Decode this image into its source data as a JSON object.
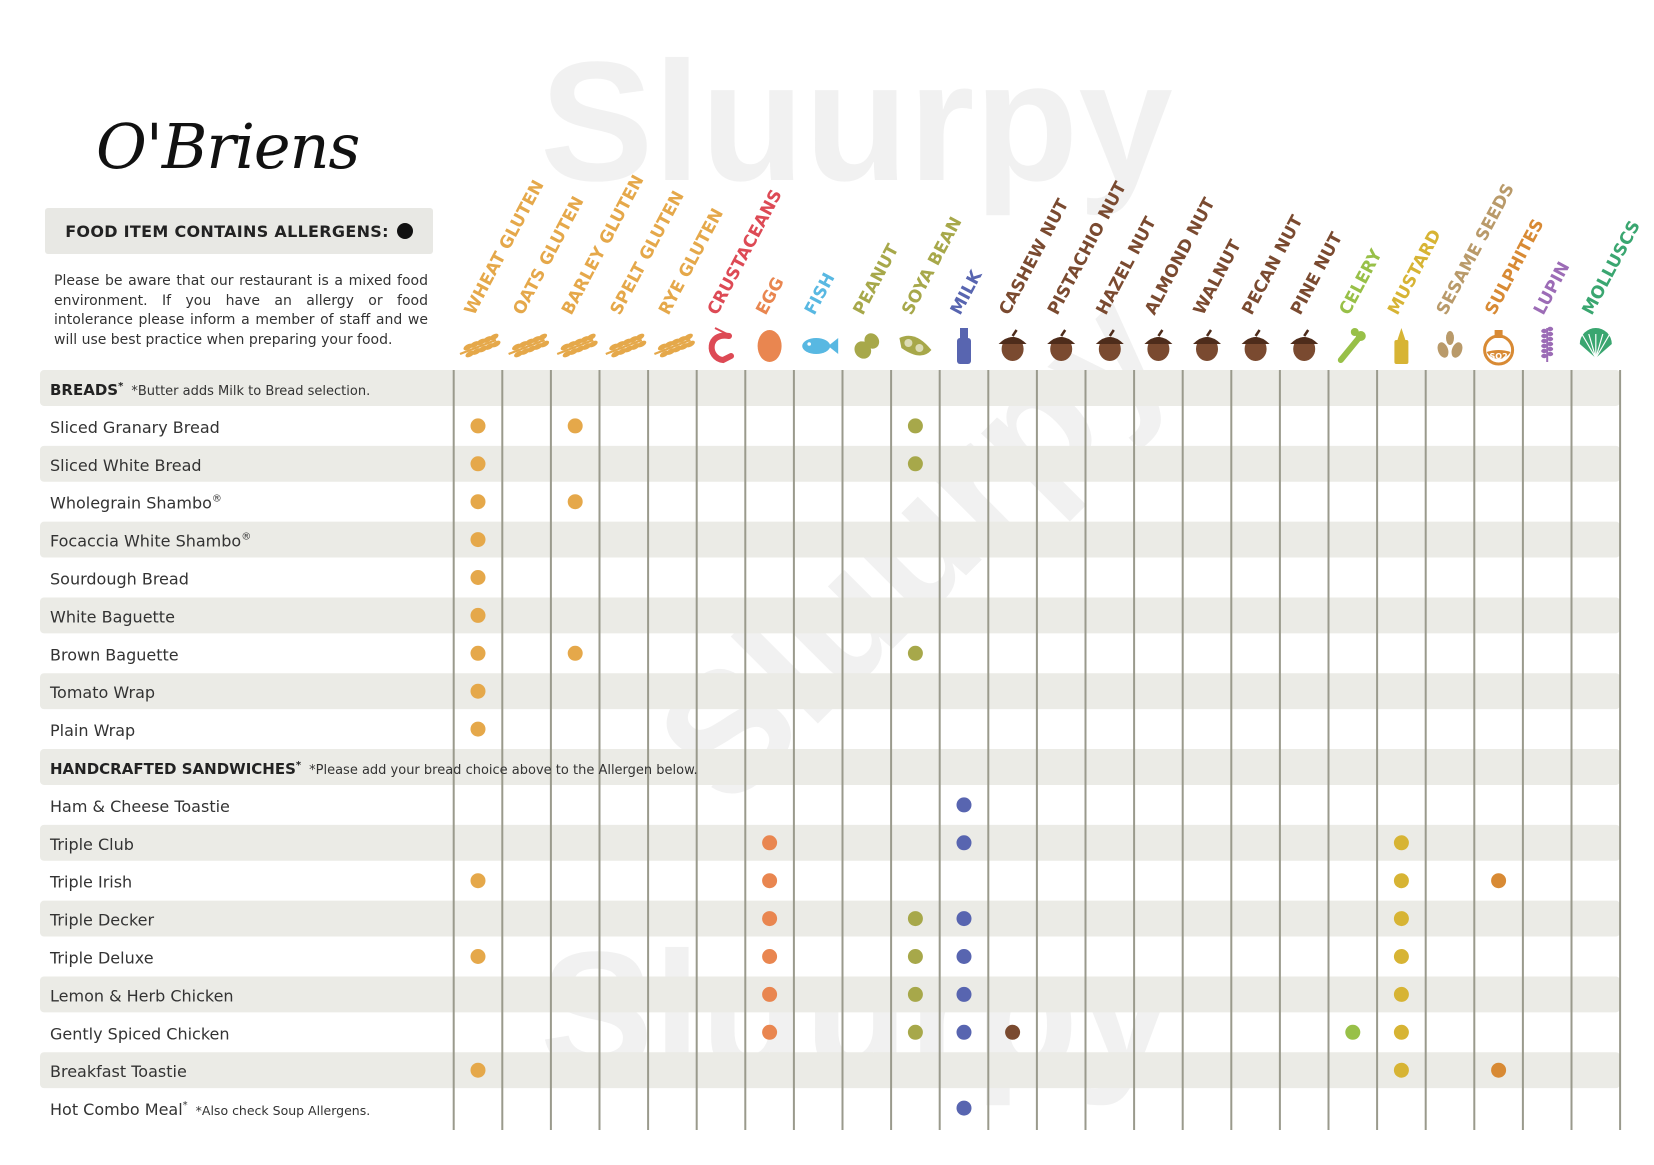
{
  "brand": {
    "logo_text": "O'Briens"
  },
  "legend": {
    "label": "FOOD ITEM CONTAINS ALLERGENS:"
  },
  "notice": "Please be aware that our restaurant is a mixed food environment. If you have an allergy or food intolerance please inform a member of staff and we will use best practice when preparing your food.",
  "watermark": "Sluurpy",
  "colors": {
    "row_shade": "#ebebe6",
    "grid_line": "#9a9a8c",
    "gluten": "#e5a84a",
    "crustaceans": "#dd4a55",
    "egg": "#e98650",
    "fish": "#58b8e2",
    "soy_peanut": "#a7a84a",
    "milk": "#5865b0",
    "nut": "#7a4a30",
    "celery": "#98c048",
    "mustard": "#d7b434",
    "sesame": "#b99a6a",
    "sulphites": "#d88a34",
    "lupin": "#9c6cb6",
    "molluscs": "#3aa670"
  },
  "allergens": [
    {
      "label": "WHEAT GLUTEN",
      "icon": "wheat-icon",
      "color": "#e5a84a"
    },
    {
      "label": "OATS GLUTEN",
      "icon": "wheat-icon",
      "color": "#e5a84a"
    },
    {
      "label": "BARLEY GLUTEN",
      "icon": "wheat-icon",
      "color": "#e5a84a"
    },
    {
      "label": "SPELT GLUTEN",
      "icon": "wheat-icon",
      "color": "#e5a84a"
    },
    {
      "label": "RYE GLUTEN",
      "icon": "wheat-icon",
      "color": "#e5a84a"
    },
    {
      "label": "CRUSTACEANS",
      "icon": "shrimp-icon",
      "color": "#dd4a55"
    },
    {
      "label": "EGG",
      "icon": "egg-icon",
      "color": "#e98650"
    },
    {
      "label": "FISH",
      "icon": "fish-icon",
      "color": "#58b8e2"
    },
    {
      "label": "PEANUT",
      "icon": "peanut-icon",
      "color": "#a7a84a"
    },
    {
      "label": "SOYA BEAN",
      "icon": "soybean-icon",
      "color": "#a7a84a"
    },
    {
      "label": "MILK",
      "icon": "milk-bottle-icon",
      "color": "#5865b0"
    },
    {
      "label": "CASHEW NUT",
      "icon": "acorn-icon",
      "color": "#7a4a30"
    },
    {
      "label": "PISTACHIO NUT",
      "icon": "acorn-icon",
      "color": "#7a4a30"
    },
    {
      "label": "HAZEL NUT",
      "icon": "acorn-icon",
      "color": "#7a4a30"
    },
    {
      "label": "ALMOND NUT",
      "icon": "acorn-icon",
      "color": "#7a4a30"
    },
    {
      "label": "WALNUT",
      "icon": "acorn-icon",
      "color": "#7a4a30"
    },
    {
      "label": "PECAN NUT",
      "icon": "acorn-icon",
      "color": "#7a4a30"
    },
    {
      "label": "PINE NUT",
      "icon": "acorn-icon",
      "color": "#7a4a30"
    },
    {
      "label": "CELERY",
      "icon": "celery-icon",
      "color": "#98c048"
    },
    {
      "label": "MUSTARD",
      "icon": "mustard-bottle-icon",
      "color": "#d7b434"
    },
    {
      "label": "SESAME SEEDS",
      "icon": "seeds-icon",
      "color": "#b99a6a"
    },
    {
      "label": "SULPHITES",
      "icon": "flask-icon",
      "color": "#d88a34",
      "icon_text": "SO2"
    },
    {
      "label": "LUPIN",
      "icon": "lupin-flower-icon",
      "color": "#9c6cb6"
    },
    {
      "label": "MOLLUSCS",
      "icon": "shell-icon",
      "color": "#3aa670"
    }
  ],
  "rows": [
    {
      "type": "section",
      "label": "BREADS",
      "sup": "*",
      "note": "*Butter adds Milk to Bread selection."
    },
    {
      "type": "item",
      "label": "Sliced Granary Bread",
      "marks": [
        0,
        2,
        9
      ]
    },
    {
      "type": "item",
      "label": "Sliced White Bread",
      "marks": [
        0,
        9
      ]
    },
    {
      "type": "item",
      "label": "Wholegrain Shambo",
      "sup": "®",
      "marks": [
        0,
        2
      ]
    },
    {
      "type": "item",
      "label": "Focaccia White Shambo",
      "sup": "®",
      "marks": [
        0
      ]
    },
    {
      "type": "item",
      "label": "Sourdough Bread",
      "marks": [
        0
      ]
    },
    {
      "type": "item",
      "label": "White Baguette",
      "marks": [
        0
      ]
    },
    {
      "type": "item",
      "label": "Brown Baguette",
      "marks": [
        0,
        2,
        9
      ]
    },
    {
      "type": "item",
      "label": "Tomato Wrap",
      "marks": [
        0
      ]
    },
    {
      "type": "item",
      "label": "Plain Wrap",
      "marks": [
        0
      ]
    },
    {
      "type": "section",
      "label": "HANDCRAFTED SANDWICHES",
      "sup": "*",
      "note": "*Please add your bread choice above to the Allergen below."
    },
    {
      "type": "item",
      "label": "Ham & Cheese Toastie",
      "marks": [
        10
      ]
    },
    {
      "type": "item",
      "label": "Triple Club",
      "marks": [
        6,
        10,
        19
      ]
    },
    {
      "type": "item",
      "label": "Triple Irish",
      "marks": [
        0,
        6,
        19,
        21
      ]
    },
    {
      "type": "item",
      "label": "Triple Decker",
      "marks": [
        6,
        9,
        10,
        19
      ]
    },
    {
      "type": "item",
      "label": "Triple Deluxe",
      "marks": [
        0,
        6,
        9,
        10,
        19
      ]
    },
    {
      "type": "item",
      "label": "Lemon & Herb Chicken",
      "marks": [
        6,
        9,
        10,
        19
      ]
    },
    {
      "type": "item",
      "label": "Gently Spiced Chicken",
      "marks": [
        6,
        9,
        10,
        11,
        18,
        19
      ]
    },
    {
      "type": "item",
      "label": "Breakfast Toastie",
      "marks": [
        0,
        19,
        21
      ]
    },
    {
      "type": "item",
      "label": "Hot Combo Meal",
      "sup": "*",
      "note": "*Also check Soup Allergens.",
      "marks": [
        10
      ]
    }
  ]
}
